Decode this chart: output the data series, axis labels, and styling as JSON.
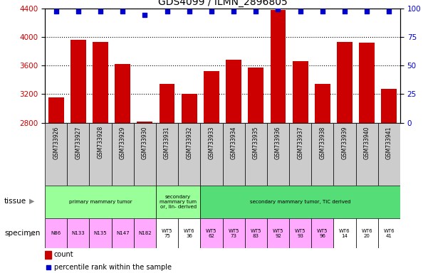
{
  "title": "GDS4099 / ILMN_2896805",
  "samples": [
    "GSM733926",
    "GSM733927",
    "GSM733928",
    "GSM733929",
    "GSM733930",
    "GSM733931",
    "GSM733932",
    "GSM733933",
    "GSM733934",
    "GSM733935",
    "GSM733936",
    "GSM733937",
    "GSM733938",
    "GSM733939",
    "GSM733940",
    "GSM733941"
  ],
  "counts": [
    3160,
    3960,
    3930,
    3620,
    2820,
    3340,
    3200,
    3520,
    3680,
    3570,
    4380,
    3660,
    3340,
    3930,
    3920,
    3270
  ],
  "percentile_ranks": [
    97,
    97,
    97,
    97,
    94,
    97,
    97,
    97,
    97,
    97,
    99,
    97,
    97,
    97,
    97,
    97
  ],
  "ylim_left": [
    2800,
    4400
  ],
  "ylim_right": [
    0,
    100
  ],
  "yticks_left": [
    2800,
    3200,
    3600,
    4000,
    4400
  ],
  "yticks_right": [
    0,
    25,
    50,
    75,
    100
  ],
  "bar_color": "#cc0000",
  "dot_color": "#0000cc",
  "tissue_data": [
    {
      "text": "primary mammary tumor",
      "start": 0,
      "end": 4,
      "color": "#99ff99"
    },
    {
      "text": "secondary\nmammary tum\nor, lin- derived",
      "start": 5,
      "end": 6,
      "color": "#99ff99"
    },
    {
      "text": "secondary mammary tumor, TIC derived",
      "start": 7,
      "end": 15,
      "color": "#55dd77"
    }
  ],
  "specimen_labels": [
    {
      "text": "N86",
      "idx": 0,
      "color": "#ffaaff"
    },
    {
      "text": "N133",
      "idx": 1,
      "color": "#ffaaff"
    },
    {
      "text": "N135",
      "idx": 2,
      "color": "#ffaaff"
    },
    {
      "text": "N147",
      "idx": 3,
      "color": "#ffaaff"
    },
    {
      "text": "N182",
      "idx": 4,
      "color": "#ffaaff"
    },
    {
      "text": "WT5\n75",
      "idx": 5,
      "color": "#ffffff"
    },
    {
      "text": "WT6\n36",
      "idx": 6,
      "color": "#ffffff"
    },
    {
      "text": "WT5\n62",
      "idx": 7,
      "color": "#ffaaff"
    },
    {
      "text": "WT5\n73",
      "idx": 8,
      "color": "#ffaaff"
    },
    {
      "text": "WT5\n83",
      "idx": 9,
      "color": "#ffaaff"
    },
    {
      "text": "WT5\n92",
      "idx": 10,
      "color": "#ffaaff"
    },
    {
      "text": "WT5\n93",
      "idx": 11,
      "color": "#ffaaff"
    },
    {
      "text": "WT5\n96",
      "idx": 12,
      "color": "#ffaaff"
    },
    {
      "text": "WT6\n14",
      "idx": 13,
      "color": "#ffffff"
    },
    {
      "text": "WT6\n20",
      "idx": 14,
      "color": "#ffffff"
    },
    {
      "text": "WT6\n41",
      "idx": 15,
      "color": "#ffffff"
    }
  ],
  "bar_label_bg": "#cccccc",
  "legend_count_color": "#cc0000",
  "legend_dot_color": "#0000cc",
  "tick_label_color_left": "#cc0000",
  "tick_label_color_right": "#0000cc",
  "arrow_color": "#888888"
}
